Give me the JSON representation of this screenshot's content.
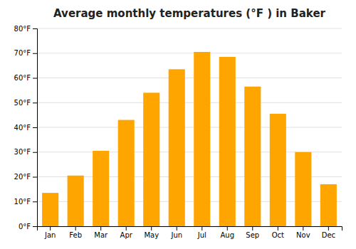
{
  "chart_data": {
    "type": "bar",
    "title": "Average monthly temperatures (°F ) in Baker",
    "categories": [
      "Jan",
      "Feb",
      "Mar",
      "Apr",
      "May",
      "Jun",
      "Jul",
      "Aug",
      "Sep",
      "Oct",
      "Nov",
      "Dec"
    ],
    "values": [
      13.5,
      20.5,
      30.5,
      43,
      54,
      63.5,
      70.5,
      68.5,
      56.5,
      45.5,
      30,
      17
    ],
    "color": "#FFA500",
    "ylim": [
      0,
      80
    ],
    "yticks": [
      {
        "value": 0,
        "label": "0°F"
      },
      {
        "value": 10,
        "label": "10°F"
      },
      {
        "value": 20,
        "label": "20°F"
      },
      {
        "value": 30,
        "label": "30°F"
      },
      {
        "value": 40,
        "label": "40°F"
      },
      {
        "value": 50,
        "label": "50°F"
      },
      {
        "value": 60,
        "label": "60°F"
      },
      {
        "value": 70,
        "label": "70°F"
      },
      {
        "value": 80,
        "label": "80°F"
      }
    ],
    "grid": true
  }
}
